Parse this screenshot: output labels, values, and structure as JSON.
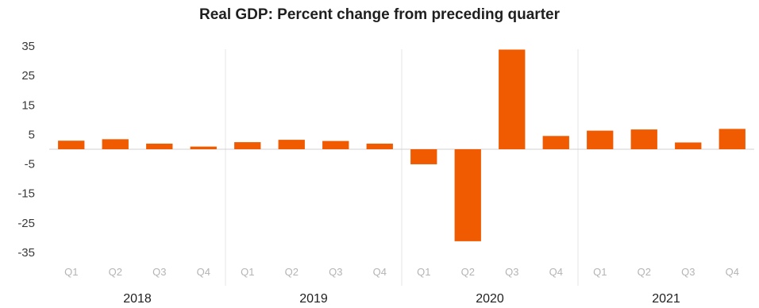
{
  "chart_data": {
    "type": "bar",
    "title": "Real GDP:  Percent change from preceding quarter",
    "xlabel": "",
    "ylabel": "",
    "ylim": [
      -35,
      35
    ],
    "yticks": [
      35,
      25,
      15,
      5,
      -5,
      -15,
      -25,
      -35
    ],
    "grid": false,
    "legend": "none",
    "bar_color": "#f05a00",
    "categories": [
      "Q1",
      "Q2",
      "Q3",
      "Q4",
      "Q1",
      "Q2",
      "Q3",
      "Q4",
      "Q1",
      "Q2",
      "Q3",
      "Q4",
      "Q1",
      "Q2",
      "Q3",
      "Q4"
    ],
    "groups": [
      {
        "label": "2018",
        "start": 0,
        "count": 4
      },
      {
        "label": "2019",
        "start": 4,
        "count": 4
      },
      {
        "label": "2020",
        "start": 8,
        "count": 4
      },
      {
        "label": "2021",
        "start": 12,
        "count": 4
      }
    ],
    "values": [
      2.9,
      3.4,
      1.9,
      0.9,
      2.4,
      3.2,
      2.8,
      1.9,
      -5.1,
      -31.2,
      33.8,
      4.5,
      6.3,
      6.7,
      2.3,
      6.9
    ]
  }
}
